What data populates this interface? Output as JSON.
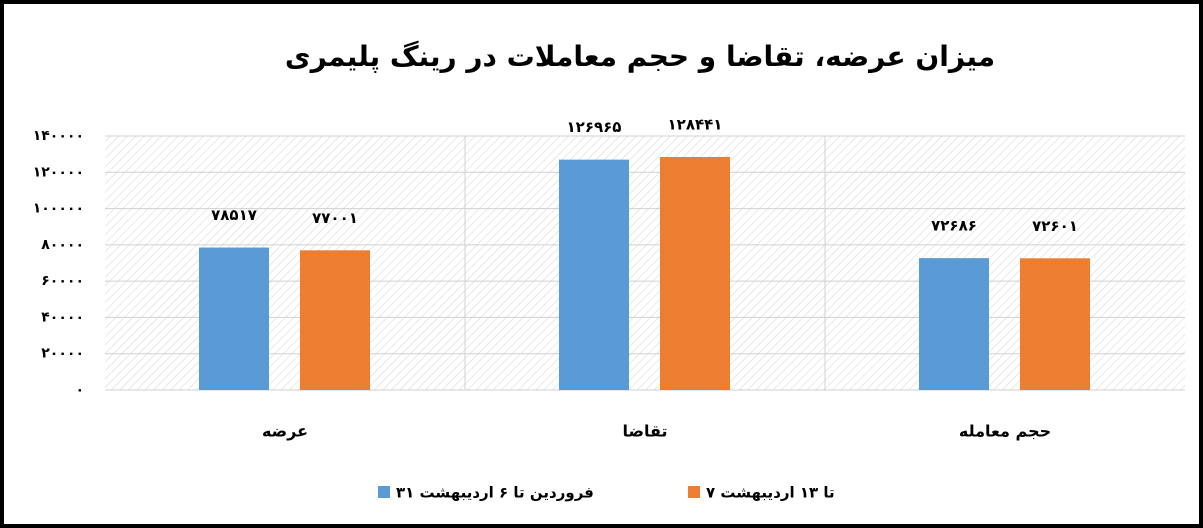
{
  "chart_data": {
    "type": "bar",
    "title": "میزان عرضه، تقاضا و حجم معاملات در رینگ پلیمری",
    "categories": [
      "عرضه",
      "تقاضا",
      "حجم معامله"
    ],
    "series": [
      {
        "name": "۳۱ فروردین تا ۶ اردیبهشت",
        "color": "#5b9bd5",
        "values": [
          78517,
          126965,
          72686
        ],
        "value_labels": [
          "۷۸۵۱۷",
          "۱۲۶۹۶۵",
          "۷۲۶۸۶"
        ]
      },
      {
        "name": "۷ تا ۱۳ اردیبهشت",
        "color": "#ed7d31",
        "values": [
          77001,
          128441,
          72601
        ],
        "value_labels": [
          "۷۷۰۰۱",
          "۱۲۸۴۴۱",
          "۷۲۶۰۱"
        ]
      }
    ],
    "ylim": [
      0,
      140000
    ],
    "yticks": [
      {
        "value": 0,
        "label": "۰"
      },
      {
        "value": 20000,
        "label": "۲۰۰۰۰"
      },
      {
        "value": 40000,
        "label": "۴۰۰۰۰"
      },
      {
        "value": 60000,
        "label": "۶۰۰۰۰"
      },
      {
        "value": 80000,
        "label": "۸۰۰۰۰"
      },
      {
        "value": 100000,
        "label": "۱۰۰۰۰۰"
      },
      {
        "value": 120000,
        "label": "۱۲۰۰۰۰"
      },
      {
        "value": 140000,
        "label": "۱۴۰۰۰۰"
      }
    ],
    "grid": true,
    "legend": "bottom"
  }
}
